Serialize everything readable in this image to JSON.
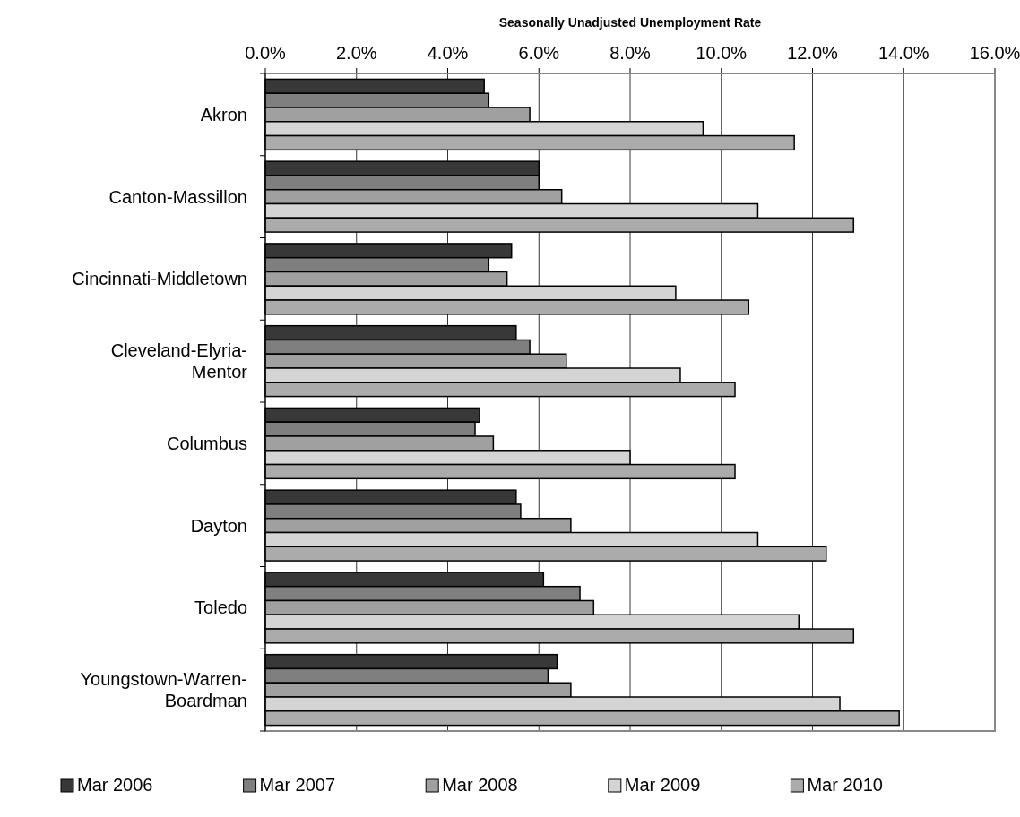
{
  "chart_data": {
    "type": "bar",
    "orientation": "horizontal",
    "xlabel": "Seasonally Unadjusted Unemployment Rate",
    "categories": [
      "Akron",
      "Canton-Massillon",
      "Cincinnati-Middletown",
      "Cleveland-Elyria-Mentor",
      "Columbus",
      "Dayton",
      "Toledo",
      "Youngstown-Warren-Boardman"
    ],
    "series": [
      {
        "name": "Mar 2006",
        "color": "#383838",
        "values": [
          4.8,
          6.0,
          5.4,
          5.5,
          4.7,
          5.5,
          6.1,
          6.4
        ]
      },
      {
        "name": "Mar 2007",
        "color": "#7f7f7f",
        "values": [
          4.9,
          6.0,
          4.9,
          5.8,
          4.6,
          5.6,
          6.9,
          6.2
        ]
      },
      {
        "name": "Mar 2008",
        "color": "#a0a0a0",
        "values": [
          5.8,
          6.5,
          5.3,
          6.6,
          5.0,
          6.7,
          7.2,
          6.7
        ]
      },
      {
        "name": "Mar 2009",
        "color": "#d4d4d4",
        "values": [
          9.6,
          10.8,
          9.0,
          9.1,
          8.0,
          10.8,
          11.7,
          12.6
        ]
      },
      {
        "name": "Mar 2010",
        "color": "#ababab",
        "values": [
          11.6,
          12.9,
          10.6,
          10.3,
          10.3,
          12.3,
          12.9,
          13.9
        ]
      }
    ],
    "xlim": [
      0,
      16
    ],
    "xticks": [
      {
        "value": 0,
        "label": "0.0%"
      },
      {
        "value": 2,
        "label": "2.0%"
      },
      {
        "value": 4,
        "label": "4.0%"
      },
      {
        "value": 6,
        "label": "6.0%"
      },
      {
        "value": 8,
        "label": "8.0%"
      },
      {
        "value": 10,
        "label": "10.0%"
      },
      {
        "value": 12,
        "label": "12.0%"
      },
      {
        "value": 14,
        "label": "14.0%"
      },
      {
        "value": 16,
        "label": "16.0%"
      }
    ],
    "grid": "x",
    "legend": "bottom"
  }
}
